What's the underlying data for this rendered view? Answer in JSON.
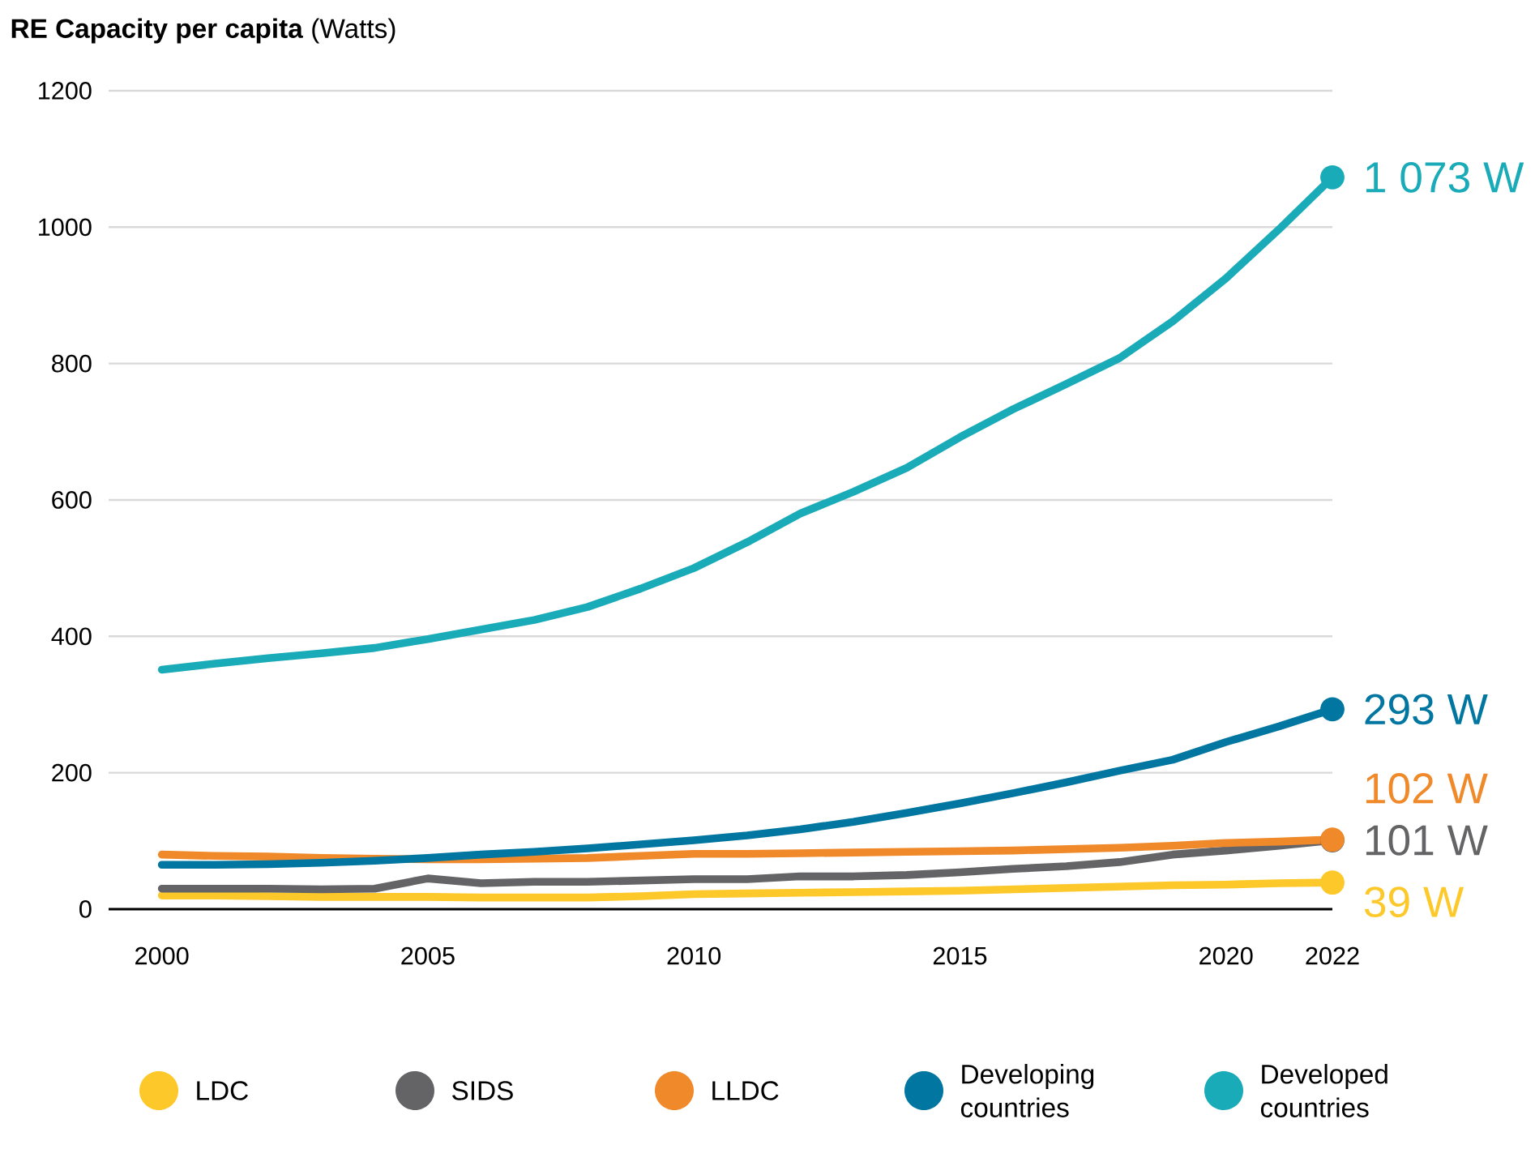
{
  "chart_data": {
    "type": "line",
    "title": "**RE Capacity per capita** (Watts)",
    "x": [
      2000,
      2001,
      2002,
      2003,
      2004,
      2005,
      2006,
      2007,
      2008,
      2009,
      2010,
      2011,
      2012,
      2013,
      2014,
      2015,
      2016,
      2017,
      2018,
      2019,
      2020,
      2021,
      2022
    ],
    "series": [
      {
        "name": "LDC",
        "color": "#fdc82a",
        "values": [
          20,
          20,
          19,
          18,
          18,
          18,
          17,
          17,
          17,
          19,
          22,
          23,
          24,
          25,
          26,
          27,
          29,
          31,
          33,
          35,
          36,
          38,
          39
        ],
        "value_labels": [
          null,
          null,
          null,
          null,
          null,
          null,
          null,
          null,
          null,
          null,
          null,
          null,
          null,
          null,
          null,
          null,
          null,
          null,
          null,
          null,
          null,
          null,
          "39 W"
        ]
      },
      {
        "name": "SIDS",
        "color": "#646466",
        "values": [
          30,
          30,
          30,
          29,
          30,
          45,
          38,
          40,
          40,
          42,
          44,
          44,
          48,
          48,
          50,
          54,
          59,
          63,
          69,
          80,
          86,
          93,
          101
        ],
        "value_labels": [
          null,
          null,
          null,
          null,
          null,
          null,
          null,
          null,
          null,
          null,
          null,
          null,
          null,
          null,
          null,
          null,
          null,
          null,
          null,
          null,
          null,
          null,
          "101 W"
        ]
      },
      {
        "name": "LLDC",
        "color": "#f0892a",
        "values": [
          80,
          78,
          77,
          75,
          74,
          73,
          73,
          74,
          75,
          78,
          81,
          81,
          82,
          83,
          84,
          85,
          86,
          88,
          90,
          93,
          97,
          99,
          102
        ],
        "value_labels": [
          null,
          null,
          null,
          null,
          null,
          null,
          null,
          null,
          null,
          null,
          null,
          null,
          null,
          null,
          null,
          null,
          null,
          null,
          null,
          null,
          null,
          null,
          "102 W"
        ]
      },
      {
        "name": "Developing countries",
        "color": "#0076a0",
        "values": [
          65,
          65,
          66,
          68,
          71,
          75,
          80,
          84,
          89,
          95,
          101,
          108,
          117,
          128,
          141,
          155,
          170,
          186,
          203,
          219,
          245,
          268,
          293
        ],
        "value_labels": [
          null,
          null,
          null,
          null,
          null,
          null,
          null,
          null,
          null,
          null,
          null,
          null,
          null,
          null,
          null,
          null,
          null,
          null,
          null,
          null,
          null,
          null,
          "293 W"
        ]
      },
      {
        "name": "Developed countries",
        "color": "#1aabb8",
        "values": [
          351,
          360,
          368,
          375,
          383,
          396,
          410,
          424,
          443,
          470,
          500,
          538,
          580,
          612,
          647,
          692,
          733,
          770,
          808,
          862,
          925,
          997,
          1073
        ],
        "value_labels": [
          null,
          null,
          null,
          null,
          null,
          null,
          null,
          null,
          null,
          null,
          null,
          null,
          null,
          null,
          null,
          null,
          null,
          null,
          null,
          null,
          null,
          null,
          "1 073 W"
        ]
      }
    ],
    "xlim": [
      1999,
      2022
    ],
    "xticks": [
      2000,
      2005,
      2010,
      2015,
      2020,
      2022
    ],
    "ylim": [
      0,
      1200
    ],
    "yticks": [
      0,
      200,
      400,
      600,
      800,
      1000,
      1200
    ],
    "grid": "y",
    "legend": "bottom",
    "line_style": "solid"
  }
}
